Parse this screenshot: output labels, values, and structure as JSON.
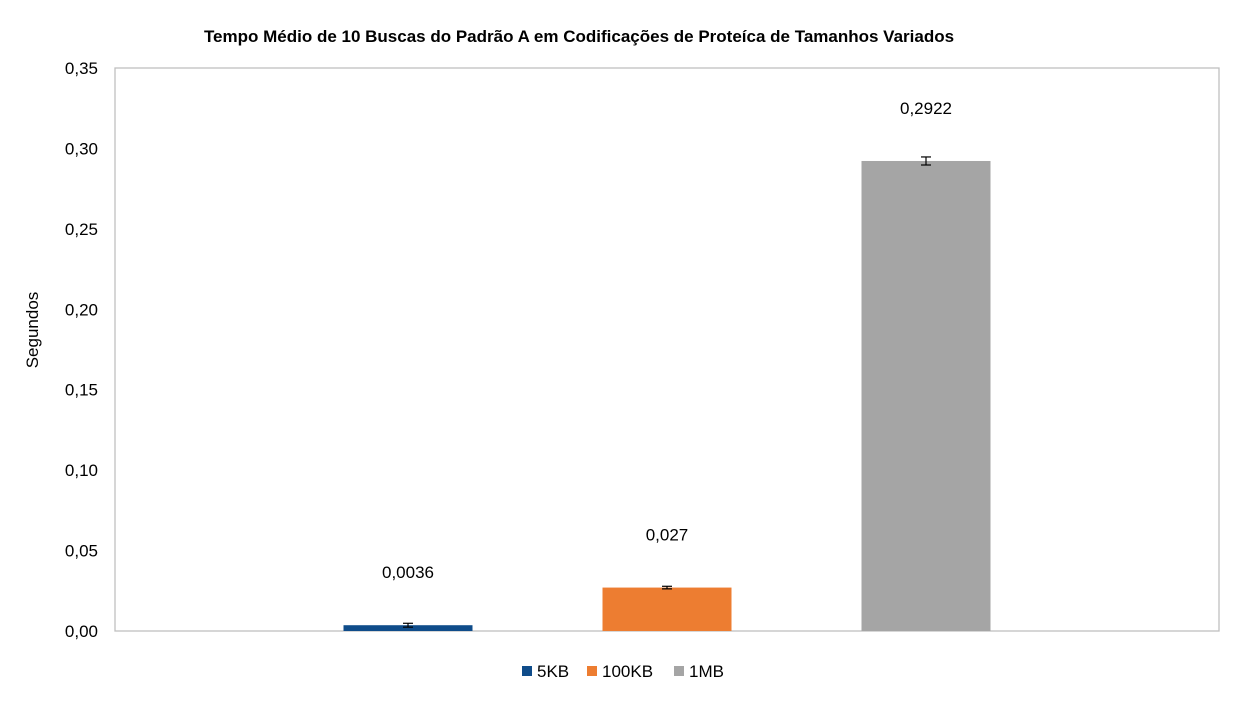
{
  "chart_data": {
    "type": "bar",
    "title": "Tempo Médio de 10 Buscas do Padrão A em Codificações de Proteíca de Tamanhos Variados",
    "xlabel": "",
    "ylabel": "Segundos",
    "ylim": [
      0,
      0.35
    ],
    "yticks": [
      {
        "value": 0.35,
        "label": "0,35"
      },
      {
        "value": 0.3,
        "label": "0,30"
      },
      {
        "value": 0.25,
        "label": "0,25"
      },
      {
        "value": 0.2,
        "label": "0,20"
      },
      {
        "value": 0.15,
        "label": "0,15"
      },
      {
        "value": 0.1,
        "label": "0,10"
      },
      {
        "value": 0.05,
        "label": "0,05"
      },
      {
        "value": 0.0,
        "label": "0,00"
      }
    ],
    "grid": false,
    "legend_position": "bottom",
    "series": [
      {
        "name": "5KB",
        "value": 0.0036,
        "label": "0,0036",
        "error": 0.0012,
        "color": "#0F4C8A"
      },
      {
        "name": "100KB",
        "value": 0.027,
        "label": "0,027",
        "error": 0.0008,
        "color": "#ED7D31"
      },
      {
        "name": "1MB",
        "value": 0.2922,
        "label": "0,2922",
        "error": 0.0025,
        "color": "#A5A5A5"
      }
    ]
  }
}
